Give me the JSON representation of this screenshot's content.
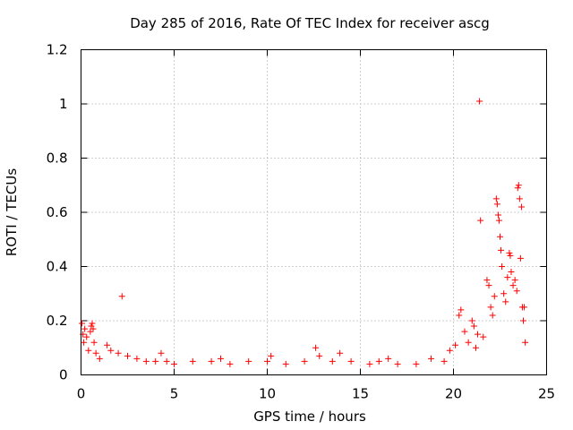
{
  "chart_data": {
    "type": "scatter",
    "title": "Day 285 of 2016, Rate Of TEC Index for receiver ascg",
    "xlabel": "GPS time / hours",
    "ylabel": "ROTI / TECUs",
    "xlim": [
      0,
      25
    ],
    "ylim": [
      0,
      1.2
    ],
    "xticks": [
      0,
      5,
      10,
      15,
      20,
      25
    ],
    "xtick_labels": [
      "0",
      "5",
      "10",
      "15",
      "20",
      "25"
    ],
    "yticks": [
      0,
      0.2,
      0.4,
      0.6,
      0.8,
      1,
      1.2
    ],
    "ytick_labels": [
      "0",
      "0.2",
      "0.4",
      "0.6",
      "0.8",
      "1",
      "1.2"
    ],
    "grid": true,
    "marker": "+",
    "color": "#ff0000",
    "series": [
      {
        "name": "ROTI",
        "points": [
          [
            0.05,
            0.19
          ],
          [
            0.1,
            0.15
          ],
          [
            0.15,
            0.12
          ],
          [
            0.2,
            0.17
          ],
          [
            0.3,
            0.14
          ],
          [
            0.4,
            0.09
          ],
          [
            0.5,
            0.16
          ],
          [
            0.55,
            0.18
          ],
          [
            0.6,
            0.19
          ],
          [
            0.65,
            0.17
          ],
          [
            0.7,
            0.12
          ],
          [
            0.8,
            0.08
          ],
          [
            1.0,
            0.06
          ],
          [
            1.4,
            0.11
          ],
          [
            1.6,
            0.09
          ],
          [
            2.0,
            0.08
          ],
          [
            2.2,
            0.29
          ],
          [
            2.5,
            0.07
          ],
          [
            3.0,
            0.06
          ],
          [
            3.5,
            0.05
          ],
          [
            4.0,
            0.05
          ],
          [
            4.3,
            0.08
          ],
          [
            4.6,
            0.05
          ],
          [
            5.0,
            0.04
          ],
          [
            6.0,
            0.05
          ],
          [
            7.0,
            0.05
          ],
          [
            7.5,
            0.06
          ],
          [
            8.0,
            0.04
          ],
          [
            9.0,
            0.05
          ],
          [
            10.0,
            0.05
          ],
          [
            10.2,
            0.07
          ],
          [
            11.0,
            0.04
          ],
          [
            12.0,
            0.05
          ],
          [
            12.6,
            0.1
          ],
          [
            12.8,
            0.07
          ],
          [
            13.5,
            0.05
          ],
          [
            13.9,
            0.08
          ],
          [
            14.5,
            0.05
          ],
          [
            15.5,
            0.04
          ],
          [
            16.0,
            0.05
          ],
          [
            16.5,
            0.06
          ],
          [
            17.0,
            0.04
          ],
          [
            18.0,
            0.04
          ],
          [
            18.8,
            0.06
          ],
          [
            19.5,
            0.05
          ],
          [
            19.8,
            0.09
          ],
          [
            20.1,
            0.11
          ],
          [
            20.3,
            0.22
          ],
          [
            20.4,
            0.24
          ],
          [
            20.6,
            0.16
          ],
          [
            20.8,
            0.12
          ],
          [
            21.0,
            0.2
          ],
          [
            21.1,
            0.18
          ],
          [
            21.2,
            0.1
          ],
          [
            21.3,
            0.15
          ],
          [
            21.4,
            1.01
          ],
          [
            21.45,
            0.57
          ],
          [
            21.6,
            0.14
          ],
          [
            21.8,
            0.35
          ],
          [
            21.9,
            0.33
          ],
          [
            22.0,
            0.25
          ],
          [
            22.1,
            0.22
          ],
          [
            22.2,
            0.29
          ],
          [
            22.3,
            0.65
          ],
          [
            22.35,
            0.63
          ],
          [
            22.4,
            0.59
          ],
          [
            22.45,
            0.57
          ],
          [
            22.5,
            0.51
          ],
          [
            22.55,
            0.46
          ],
          [
            22.6,
            0.4
          ],
          [
            22.7,
            0.3
          ],
          [
            22.8,
            0.27
          ],
          [
            22.9,
            0.36
          ],
          [
            23.0,
            0.45
          ],
          [
            23.05,
            0.44
          ],
          [
            23.1,
            0.38
          ],
          [
            23.2,
            0.33
          ],
          [
            23.3,
            0.35
          ],
          [
            23.4,
            0.31
          ],
          [
            23.45,
            0.69
          ],
          [
            23.5,
            0.7
          ],
          [
            23.55,
            0.65
          ],
          [
            23.6,
            0.43
          ],
          [
            23.65,
            0.62
          ],
          [
            23.7,
            0.25
          ],
          [
            23.75,
            0.2
          ],
          [
            23.8,
            0.25
          ],
          [
            23.85,
            0.12
          ]
        ]
      }
    ]
  }
}
